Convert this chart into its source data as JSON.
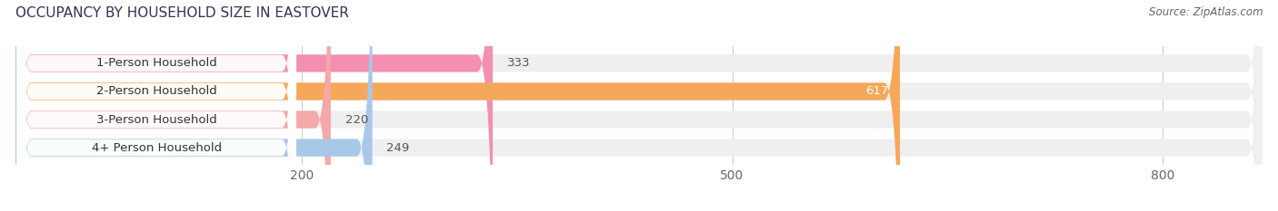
{
  "title": "OCCUPANCY BY HOUSEHOLD SIZE IN EASTOVER",
  "source": "Source: ZipAtlas.com",
  "categories": [
    "1-Person Household",
    "2-Person Household",
    "3-Person Household",
    "4+ Person Household"
  ],
  "values": [
    333,
    617,
    220,
    249
  ],
  "bar_colors": [
    "#f48fb1",
    "#f5a85a",
    "#f4a8a8",
    "#a8c8e8"
  ],
  "label_colors": [
    "#333333",
    "#ffffff",
    "#333333",
    "#333333"
  ],
  "xlim": [
    0,
    870
  ],
  "xticks": [
    200,
    500,
    800
  ],
  "bar_height": 0.62,
  "background_color": "#ffffff",
  "bar_bg_color": "#efefef",
  "title_fontsize": 11,
  "tick_fontsize": 10,
  "label_fontsize": 9.5,
  "value_fontsize": 9.5
}
